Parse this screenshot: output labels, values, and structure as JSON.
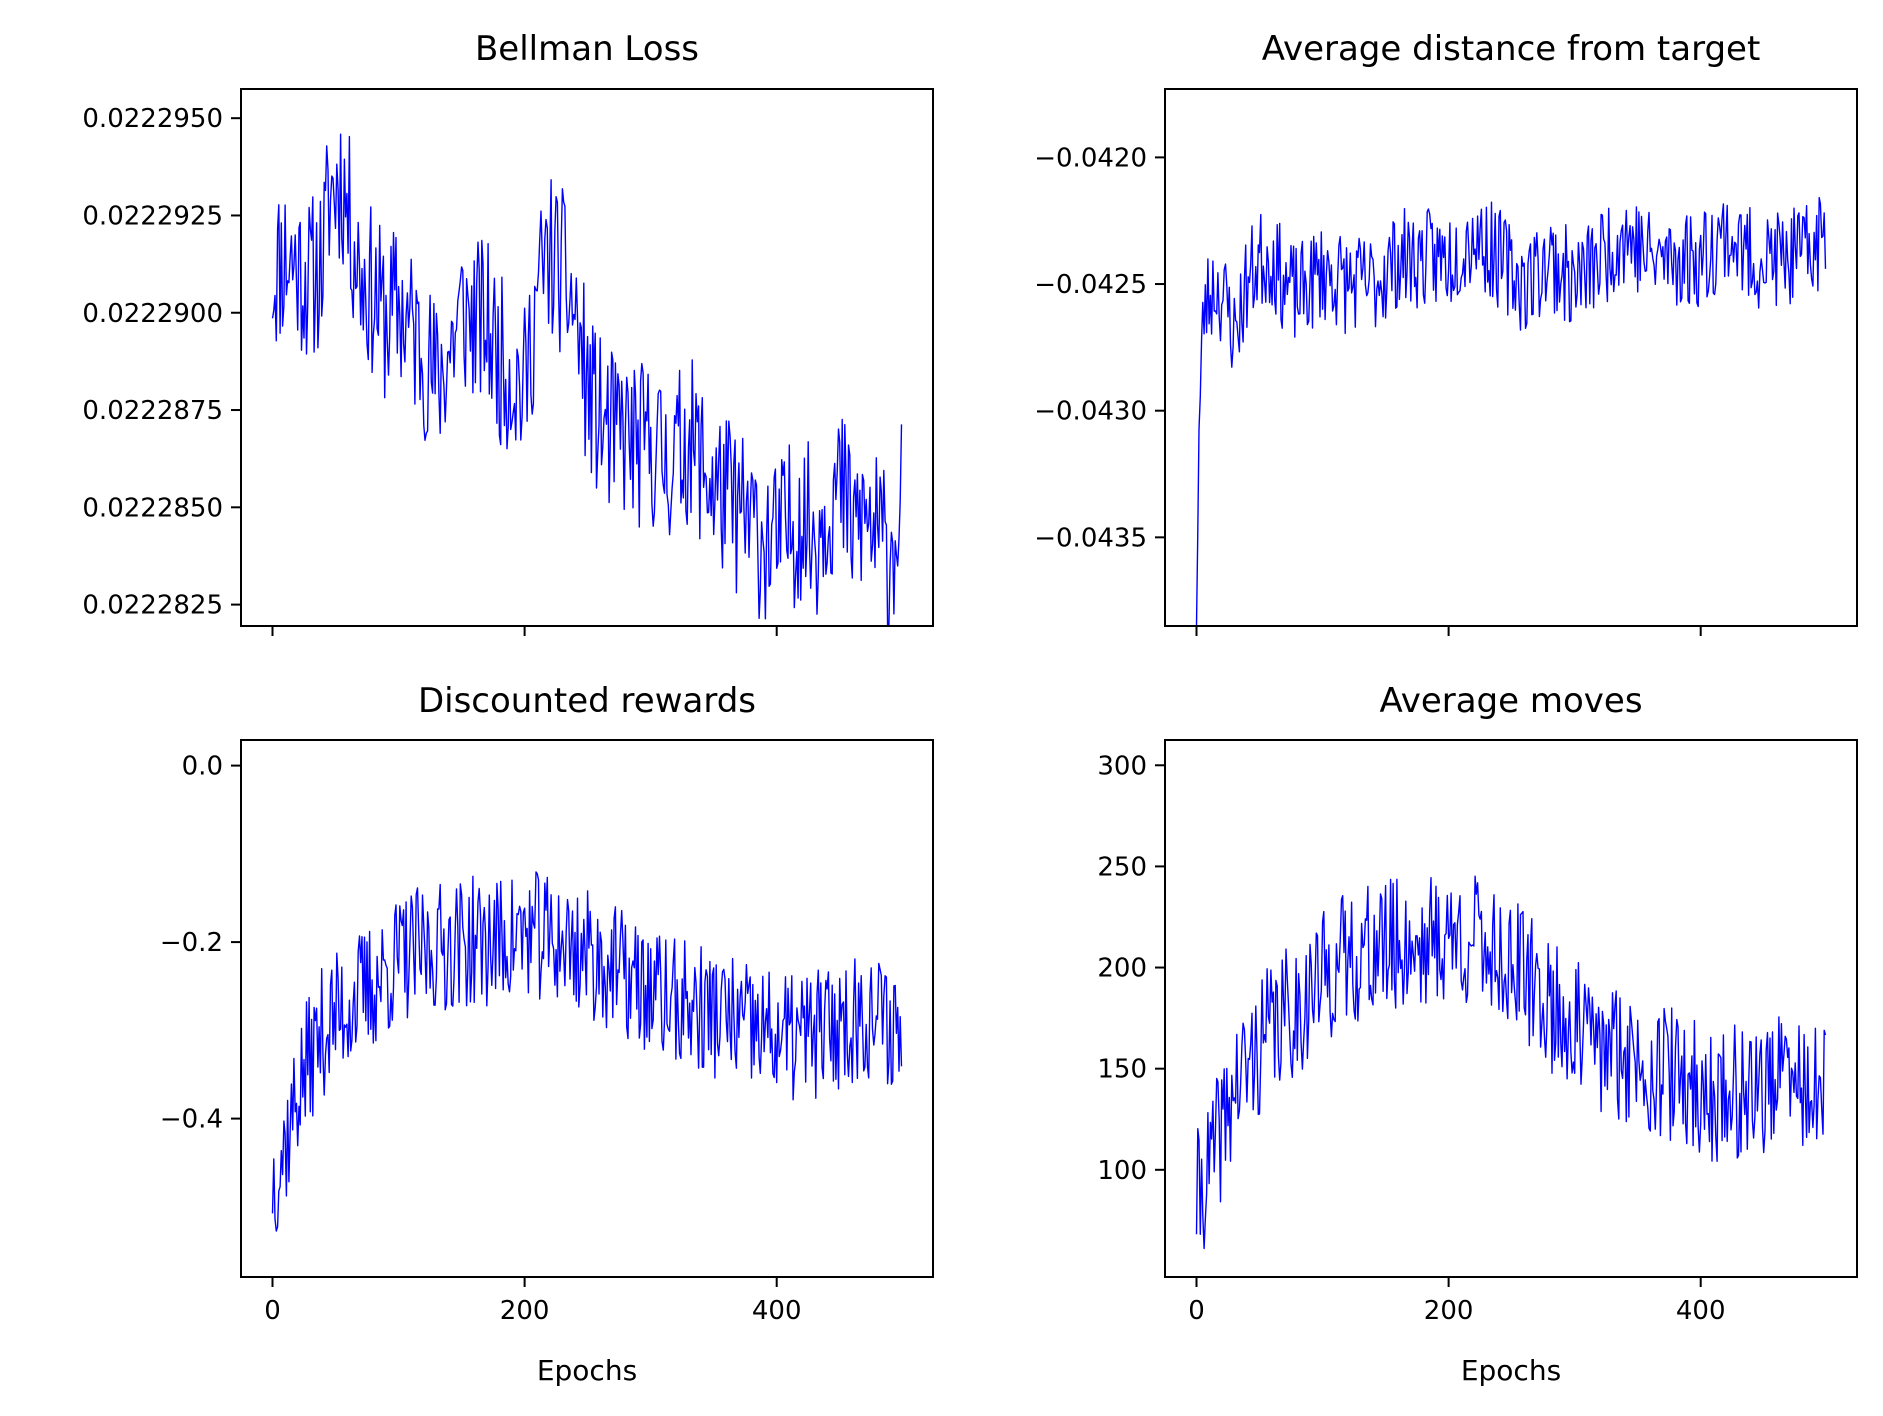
{
  "chart_data": [
    {
      "type": "line",
      "title": "Bellman Loss",
      "xlabel": "",
      "ylabel": "",
      "x_range": [
        0,
        499
      ],
      "xlim": [
        -25,
        524
      ],
      "ylim": [
        0.02228195,
        0.02229575
      ],
      "xticks": [
        0,
        200,
        400
      ],
      "xtick_labels": [],
      "yticks": [
        0.022295,
        0.0222925,
        0.02229,
        0.0222875,
        0.022285,
        0.0222825
      ],
      "ytick_labels": [
        "0.0222950",
        "0.0222925",
        "0.0222900",
        "0.0222875",
        "0.0222850",
        "0.0222825"
      ],
      "line_color": "#0000ff",
      "grid": false,
      "noise": 2.2e-06,
      "seed": 11,
      "series": [
        {
          "anchors_x": [
            0,
            10,
            20,
            30,
            40,
            45,
            55,
            60,
            70,
            80,
            90,
            100,
            110,
            120,
            130,
            140,
            150,
            160,
            170,
            180,
            190,
            200,
            210,
            220,
            230,
            240,
            250,
            260,
            270,
            280,
            290,
            300,
            310,
            320,
            330,
            340,
            350,
            360,
            370,
            380,
            390,
            400,
            410,
            420,
            430,
            440,
            450,
            460,
            470,
            480,
            490,
            499
          ],
          "anchors_y": [
            0.022291,
            0.0222915,
            0.0222912,
            0.0222908,
            0.0222914,
            0.022293,
            0.0222935,
            0.0222925,
            0.022291,
            0.0222905,
            0.0222898,
            0.0222902,
            0.0222896,
            0.022289,
            0.0222882,
            0.022289,
            0.02229,
            0.0222898,
            0.0222897,
            0.0222888,
            0.0222885,
            0.022288,
            0.0222905,
            0.0222915,
            0.022291,
            0.02229,
            0.022288,
            0.0222872,
            0.0222868,
            0.0222869,
            0.0222865,
            0.0222867,
            0.0222862,
            0.0222863,
            0.0222868,
            0.0222862,
            0.0222855,
            0.0222853,
            0.0222848,
            0.0222845,
            0.0222842,
            0.022284,
            0.0222845,
            0.0222848,
            0.0222842,
            0.0222852,
            0.0222855,
            0.0222845,
            0.0222848,
            0.0222842,
            0.0222838,
            0.0222852
          ]
        }
      ]
    },
    {
      "type": "line",
      "title": "Average distance from target",
      "xlabel": "",
      "ylabel": "",
      "x_range": [
        0,
        499
      ],
      "xlim": [
        -25,
        524
      ],
      "ylim": [
        -0.04385,
        -0.04173
      ],
      "xticks": [
        0,
        200,
        400
      ],
      "xtick_labels": [],
      "yticks": [
        -0.042,
        -0.0425,
        -0.043,
        -0.0435
      ],
      "ytick_labels": [
        "−0.0420",
        "−0.0425",
        "−0.0430",
        "−0.0435"
      ],
      "line_color": "#0000ff",
      "grid": false,
      "noise": 0.0002,
      "seed": 23,
      "series": [
        {
          "anchors_x": [
            0,
            2,
            4,
            6,
            10,
            15,
            20,
            25,
            30,
            40,
            50,
            60,
            70,
            80,
            90,
            100,
            120,
            140,
            160,
            180,
            200,
            220,
            240,
            260,
            280,
            300,
            320,
            340,
            360,
            380,
            400,
            420,
            440,
            460,
            480,
            499
          ],
          "anchors_y": [
            -0.04375,
            -0.0431,
            -0.0428,
            -0.0426,
            -0.04255,
            -0.0425,
            -0.04255,
            -0.0426,
            -0.0427,
            -0.0425,
            -0.0424,
            -0.0424,
            -0.0425,
            -0.04255,
            -0.0425,
            -0.04245,
            -0.0425,
            -0.0425,
            -0.0424,
            -0.0424,
            -0.0424,
            -0.0423,
            -0.0424,
            -0.0425,
            -0.0424,
            -0.0425,
            -0.0424,
            -0.0423,
            -0.0424,
            -0.0424,
            -0.0424,
            -0.0423,
            -0.0424,
            -0.0424,
            -0.0424,
            -0.0423
          ]
        }
      ]
    },
    {
      "type": "line",
      "title": "Discounted rewards",
      "xlabel": "Epochs",
      "ylabel": "",
      "x_range": [
        0,
        499
      ],
      "xlim": [
        -25,
        524
      ],
      "ylim": [
        -0.5795,
        0.029
      ],
      "xticks": [
        0,
        200,
        400
      ],
      "xtick_labels": [
        "0",
        "200",
        "400"
      ],
      "yticks": [
        0.0,
        -0.2,
        -0.4
      ],
      "ytick_labels": [
        "0.0",
        "−0.2",
        "−0.4"
      ],
      "line_color": "#0000ff",
      "grid": false,
      "noise": 0.075,
      "seed": 37,
      "series": [
        {
          "anchors_x": [
            0,
            10,
            20,
            30,
            40,
            60,
            80,
            100,
            120,
            150,
            180,
            200,
            230,
            260,
            290,
            320,
            350,
            380,
            410,
            440,
            470,
            499
          ],
          "anchors_y": [
            -0.47,
            -0.43,
            -0.37,
            -0.33,
            -0.3,
            -0.27,
            -0.25,
            -0.22,
            -0.21,
            -0.2,
            -0.2,
            -0.19,
            -0.2,
            -0.22,
            -0.25,
            -0.27,
            -0.28,
            -0.3,
            -0.31,
            -0.3,
            -0.28,
            -0.3
          ]
        }
      ]
    },
    {
      "type": "line",
      "title": "Average moves",
      "xlabel": "Epochs",
      "ylabel": "",
      "x_range": [
        0,
        499
      ],
      "xlim": [
        -25,
        524
      ],
      "ylim": [
        47,
        312.5
      ],
      "xticks": [
        0,
        200,
        400
      ],
      "xtick_labels": [
        "0",
        "200",
        "400"
      ],
      "yticks": [
        300,
        250,
        200,
        150,
        100
      ],
      "ytick_labels": [
        "300",
        "250",
        "200",
        "150",
        "100"
      ],
      "line_color": "#0000ff",
      "grid": false,
      "noise": 34,
      "seed": 41,
      "series": [
        {
          "anchors_x": [
            0,
            10,
            20,
            30,
            40,
            60,
            80,
            100,
            120,
            150,
            180,
            200,
            230,
            260,
            290,
            320,
            350,
            380,
            410,
            440,
            470,
            499
          ],
          "anchors_y": [
            85,
            100,
            120,
            140,
            150,
            170,
            180,
            195,
            205,
            210,
            212,
            215,
            212,
            195,
            175,
            160,
            155,
            145,
            135,
            140,
            145,
            135
          ]
        }
      ]
    }
  ]
}
